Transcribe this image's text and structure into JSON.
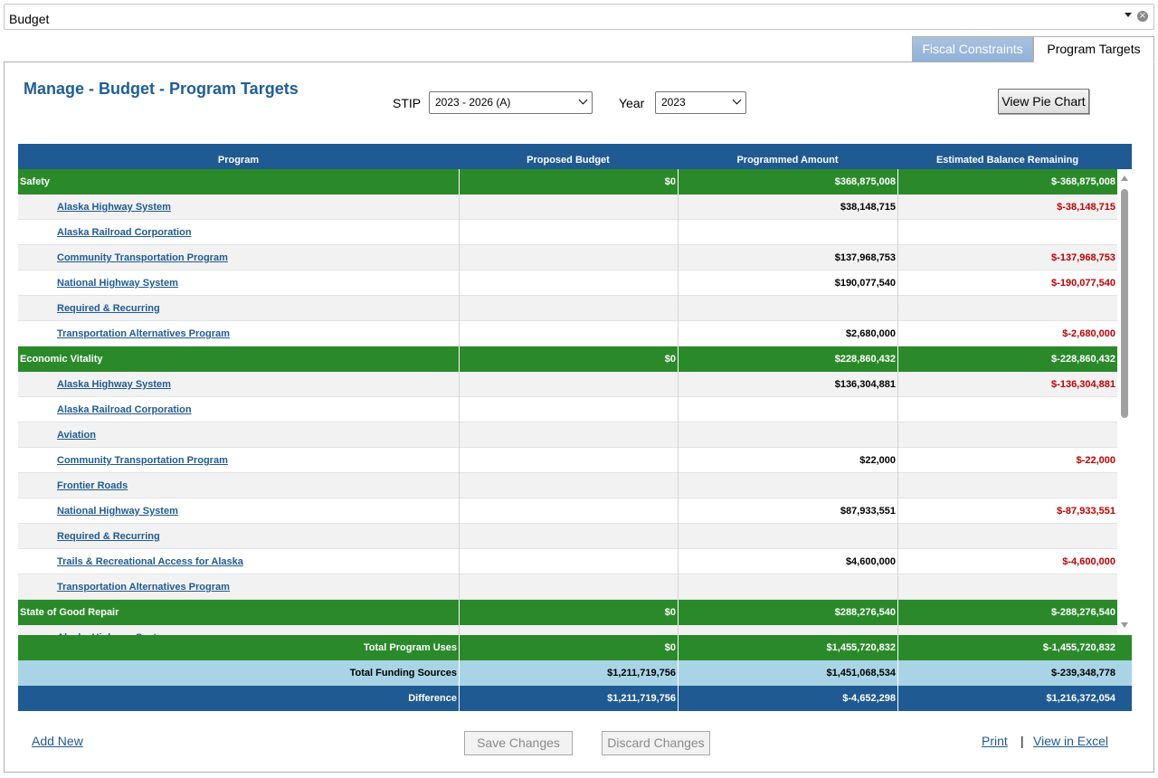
{
  "top_dropdown": {
    "value": "Budget"
  },
  "tabs": [
    {
      "label": "Fiscal Constraints"
    },
    {
      "label": "Program Targets"
    }
  ],
  "header": {
    "title": "Manage - Budget - Program Targets"
  },
  "filters": {
    "stip_label": "STIP",
    "stip_value": "2023 - 2026 (A)",
    "year_label": "Year",
    "year_value": "2023"
  },
  "actions": {
    "view_pie_chart": "View Pie Chart"
  },
  "table": {
    "columns": [
      "Program",
      "Proposed Budget",
      "Programmed Amount",
      "Estimated Balance Remaining"
    ],
    "rows": [
      {
        "type": "group",
        "program": "Safety",
        "proposed": "$0",
        "programmed": "$368,875,008",
        "balance": "$-368,875,008"
      },
      {
        "type": "sub",
        "program": "Alaska Highway System",
        "proposed": "",
        "programmed": "$38,148,715",
        "balance": "$-38,148,715"
      },
      {
        "type": "sub",
        "program": "Alaska Railroad Corporation",
        "proposed": "",
        "programmed": "",
        "balance": ""
      },
      {
        "type": "sub",
        "program": "Community Transportation Program",
        "proposed": "",
        "programmed": "$137,968,753",
        "balance": "$-137,968,753"
      },
      {
        "type": "sub",
        "program": "National Highway System",
        "proposed": "",
        "programmed": "$190,077,540",
        "balance": "$-190,077,540"
      },
      {
        "type": "sub",
        "program": "Required & Recurring",
        "proposed": "",
        "programmed": "",
        "balance": ""
      },
      {
        "type": "sub",
        "program": "Transportation Alternatives Program",
        "proposed": "",
        "programmed": "$2,680,000",
        "balance": "$-2,680,000"
      },
      {
        "type": "group",
        "program": "Economic Vitality",
        "proposed": "$0",
        "programmed": "$228,860,432",
        "balance": "$-228,860,432"
      },
      {
        "type": "sub",
        "program": "Alaska Highway System",
        "proposed": "",
        "programmed": "$136,304,881",
        "balance": "$-136,304,881"
      },
      {
        "type": "sub",
        "program": "Alaska Railroad Corporation",
        "proposed": "",
        "programmed": "",
        "balance": ""
      },
      {
        "type": "sub",
        "program": "Aviation",
        "proposed": "",
        "programmed": "",
        "balance": ""
      },
      {
        "type": "sub",
        "program": "Community Transportation Program",
        "proposed": "",
        "programmed": "$22,000",
        "balance": "$-22,000"
      },
      {
        "type": "sub",
        "program": "Frontier Roads",
        "proposed": "",
        "programmed": "",
        "balance": ""
      },
      {
        "type": "sub",
        "program": "National Highway System",
        "proposed": "",
        "programmed": "$87,933,551",
        "balance": "$-87,933,551"
      },
      {
        "type": "sub",
        "program": "Required & Recurring",
        "proposed": "",
        "programmed": "",
        "balance": ""
      },
      {
        "type": "sub",
        "program": "Trails & Recreational Access for Alaska",
        "proposed": "",
        "programmed": "$4,600,000",
        "balance": "$-4,600,000"
      },
      {
        "type": "sub",
        "program": "Transportation Alternatives Program",
        "proposed": "",
        "programmed": "",
        "balance": ""
      },
      {
        "type": "group",
        "program": "State of Good Repair",
        "proposed": "$0",
        "programmed": "$288,276,540",
        "balance": "$-288,276,540"
      },
      {
        "type": "sub",
        "program": "Alaska Highway System",
        "proposed": "",
        "programmed": "",
        "balance": ""
      }
    ],
    "totals": [
      {
        "label": "Total Program Uses",
        "proposed": "$0",
        "programmed": "$1,455,720,832",
        "balance": "$-1,455,720,832"
      },
      {
        "label": "Total Funding Sources",
        "proposed": "$1,211,719,756",
        "programmed": "$1,451,068,534",
        "balance": "$-239,348,778"
      },
      {
        "label": "Difference",
        "proposed": "$1,211,719,756",
        "programmed": "$-4,652,298",
        "balance": "$1,216,372,054"
      }
    ]
  },
  "footer": {
    "add_new": "Add New",
    "save_changes": "Save Changes",
    "discard_changes": "Discard Changes",
    "print": "Print",
    "separator": "|",
    "view_in_excel": "View in Excel"
  }
}
